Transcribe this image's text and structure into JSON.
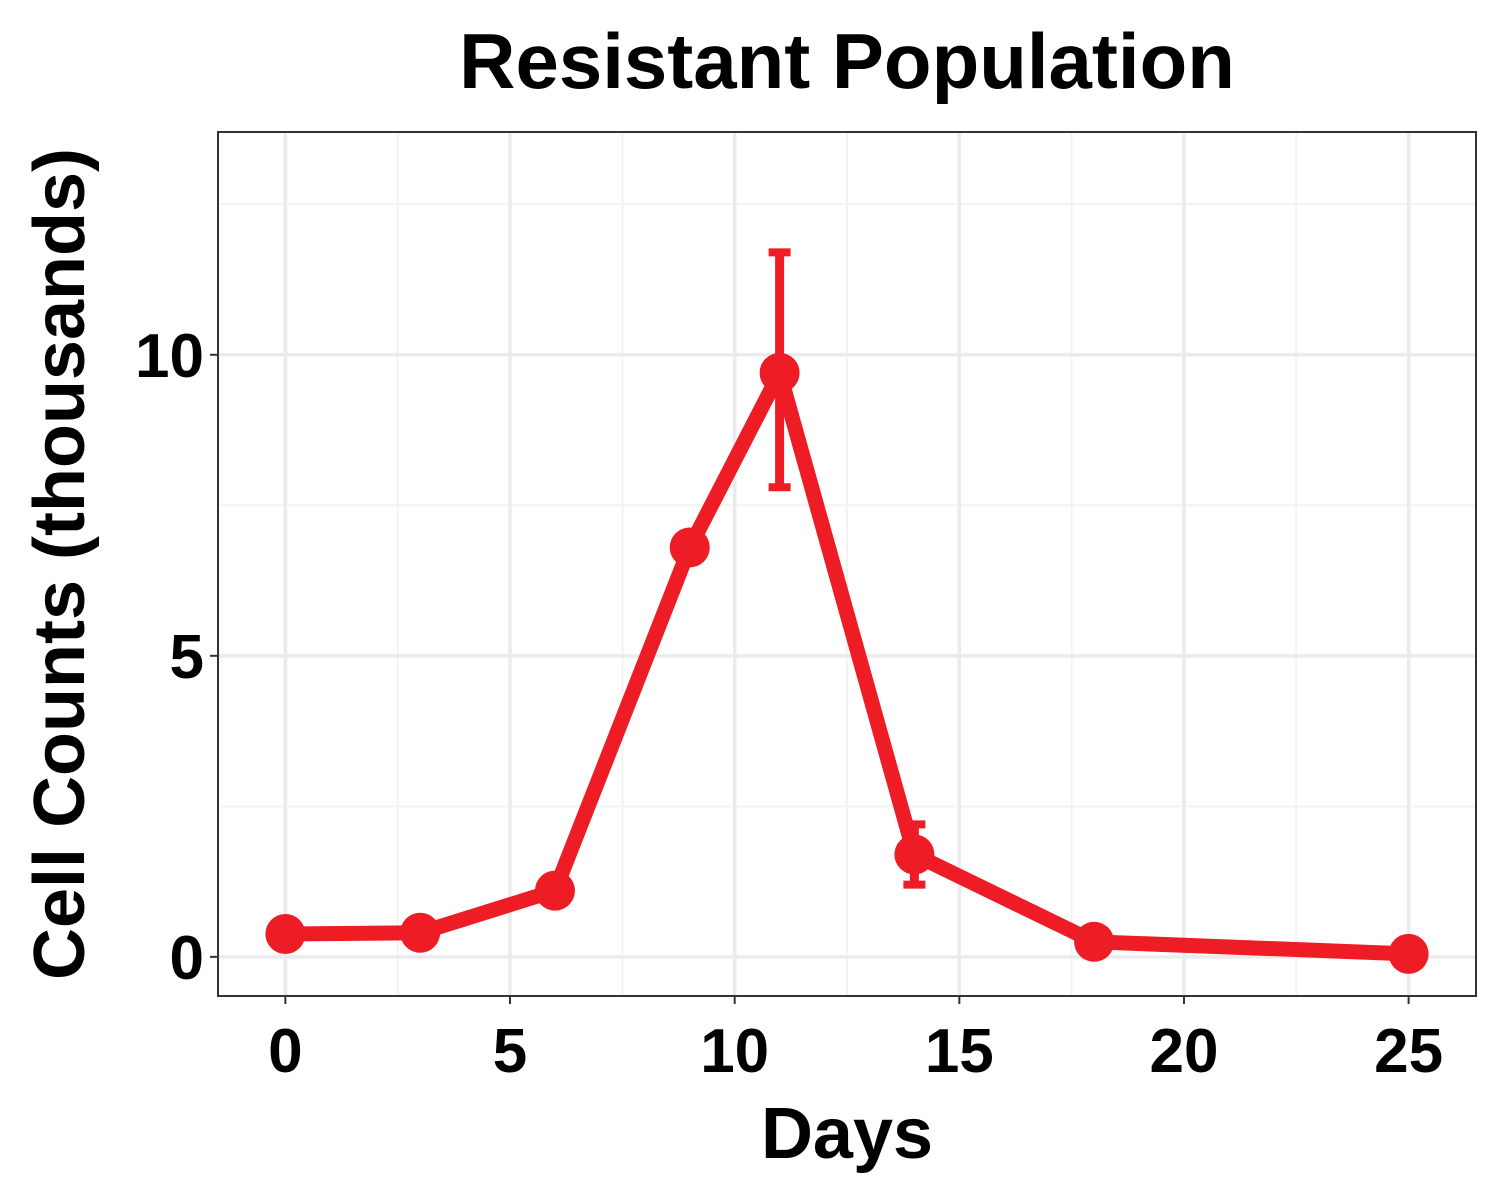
{
  "chart_data": {
    "type": "line",
    "title": "Resistant Population",
    "xlabel": "Days",
    "ylabel": "Cell Counts (thousands)",
    "xlim": [
      -1.5,
      26.5
    ],
    "ylim": [
      -0.65,
      13.7
    ],
    "x_ticks": [
      0,
      5,
      10,
      15,
      20,
      25
    ],
    "y_ticks": [
      0,
      5,
      10
    ],
    "x_minor_ticks": [
      2.5,
      7.5,
      12.5,
      17.5,
      22.5
    ],
    "y_minor_ticks": [
      2.5,
      7.5,
      12.5
    ],
    "grid": true,
    "color": "#ee1c25",
    "series": [
      {
        "x": [
          0,
          3,
          6,
          9,
          11,
          14,
          18,
          25
        ],
        "values": [
          0.38,
          0.4,
          1.1,
          6.8,
          9.7,
          1.7,
          0.25,
          0.05
        ],
        "error_bars": [
          {
            "x": 11,
            "low": 7.8,
            "high": 11.7
          },
          {
            "x": 14,
            "low": 1.2,
            "high": 2.2
          }
        ]
      }
    ]
  }
}
